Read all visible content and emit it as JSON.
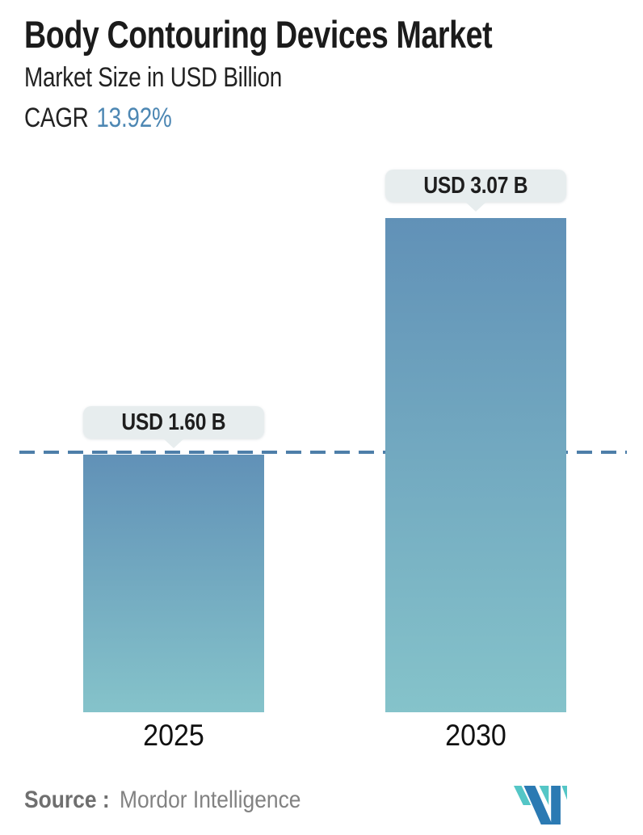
{
  "header": {
    "title": "Body Contouring Devices Market",
    "subtitle": "Market Size in USD Billion",
    "cagr_label": "CAGR",
    "cagr_value": "13.92%"
  },
  "chart_data": {
    "type": "bar",
    "title": "Body Contouring Devices Market",
    "subtitle": "Market Size in USD Billion",
    "unit": "USD Billion",
    "cagr_percent": 13.92,
    "categories": [
      "2025",
      "2030"
    ],
    "values": [
      1.6,
      3.07
    ],
    "value_labels": [
      "USD 1.60 B",
      "USD 3.07 B"
    ],
    "ylim": [
      0,
      3.2
    ],
    "grid": false,
    "legend": false,
    "reference_line": {
      "value": 1.6,
      "style": "dashed"
    },
    "colors": {
      "bar_gradient_top": "#6191b7",
      "bar_gradient_bottom": "#85c3ca",
      "dashed_line": "#4e7fa9",
      "label_badge_bg": "#e7edee",
      "cagr_value_text": "#4d87b3"
    }
  },
  "footer": {
    "source_label": "Source :",
    "source_value": "Mordor Intelligence",
    "logo_name": "mordor-intelligence-logo",
    "logo_colors": {
      "blue": "#2b7ab3",
      "teal": "#54c6c6"
    }
  }
}
